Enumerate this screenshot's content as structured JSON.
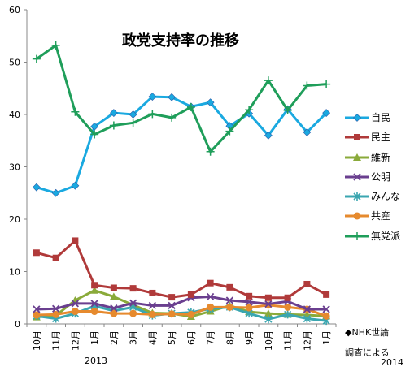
{
  "chart_data": {
    "type": "line",
    "title": "政党支持率の推移",
    "ylim": [
      0,
      60
    ],
    "yticks": [
      0,
      10,
      20,
      30,
      40,
      50,
      60
    ],
    "categories": [
      "10月",
      "11月",
      "12月",
      "1月",
      "2月",
      "3月",
      "4月",
      "5月",
      "6月",
      "7月",
      "8月",
      "9月",
      "10月",
      "11月",
      "12月",
      "1月"
    ],
    "year_labels": [
      "2013",
      "2014"
    ],
    "grid": false,
    "legend_position": "right",
    "series": [
      {
        "name": "自民",
        "color": "#1aa9e0",
        "marker": "diamond",
        "values": [
          26.1,
          25.0,
          26.4,
          37.7,
          40.3,
          40.0,
          43.4,
          43.3,
          41.5,
          42.3,
          37.8,
          40.2,
          36.0,
          41.0,
          36.6,
          40.3
        ]
      },
      {
        "name": "民主",
        "color": "#b03a3a",
        "marker": "square",
        "values": [
          13.6,
          12.6,
          15.9,
          7.4,
          6.9,
          6.8,
          5.9,
          5.1,
          5.6,
          7.8,
          7.0,
          5.3,
          5.0,
          5.0,
          7.6,
          5.6
        ]
      },
      {
        "name": "維新",
        "color": "#8aaa3a",
        "marker": "triangle",
        "values": [
          1.3,
          1.6,
          4.5,
          6.4,
          5.2,
          3.6,
          2.1,
          2.0,
          1.4,
          2.4,
          3.5,
          2.3,
          2.0,
          1.8,
          1.7,
          1.5
        ]
      },
      {
        "name": "公明",
        "color": "#6a3f8f",
        "marker": "x",
        "values": [
          2.8,
          2.9,
          3.9,
          3.9,
          3.0,
          4.0,
          3.5,
          3.5,
          5.0,
          5.2,
          4.5,
          4.2,
          3.8,
          4.3,
          2.8,
          2.8
        ]
      },
      {
        "name": "みんな",
        "color": "#3aa6b0",
        "marker": "star",
        "values": [
          1.5,
          1.0,
          2.0,
          3.4,
          2.5,
          3.2,
          1.6,
          2.0,
          2.2,
          2.9,
          3.2,
          2.0,
          0.9,
          1.8,
          1.0,
          0.6
        ]
      },
      {
        "name": "共産",
        "color": "#e68a2e",
        "marker": "circle",
        "values": [
          1.7,
          1.8,
          2.4,
          2.4,
          2.0,
          2.0,
          1.8,
          1.9,
          1.8,
          3.2,
          3.2,
          3.1,
          3.6,
          3.2,
          2.8,
          1.5
        ]
      },
      {
        "name": "無党派",
        "color": "#1f9e5a",
        "marker": "plus",
        "values": [
          50.6,
          53.2,
          40.5,
          36.2,
          37.9,
          38.4,
          40.1,
          39.4,
          41.4,
          32.9,
          36.8,
          40.9,
          46.5,
          40.8,
          45.5,
          45.8
        ]
      }
    ]
  },
  "notes": [
    "◆NHK世論",
    "調査による"
  ]
}
